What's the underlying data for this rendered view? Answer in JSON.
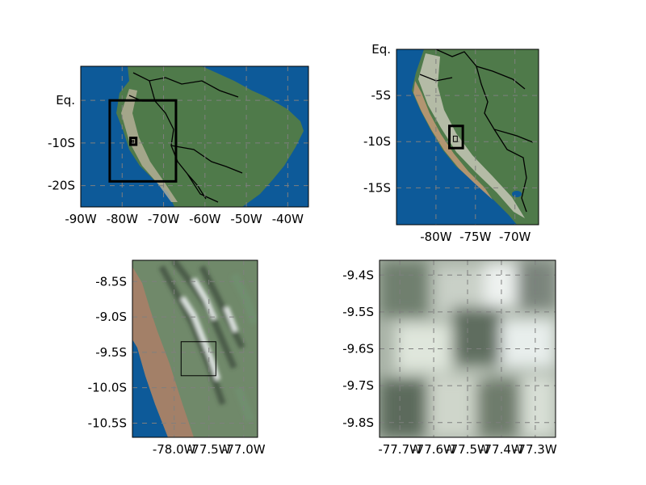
{
  "colors": {
    "ocean": "#0d5a99",
    "land_green": "#4f7a4a",
    "land_brown": "#a78a6a",
    "snow": "#d7dbd6",
    "border": "#000000",
    "grid": "#7f7f7f"
  },
  "panels": [
    {
      "id": "south-america",
      "xlim": [
        -90,
        -35
      ],
      "ylim": [
        -25,
        8
      ],
      "xticks": [
        {
          "v": -90,
          "label": "-90W"
        },
        {
          "v": -80,
          "label": "-80W"
        },
        {
          "v": -70,
          "label": "-70W"
        },
        {
          "v": -60,
          "label": "-60W"
        },
        {
          "v": -50,
          "label": "-50W"
        },
        {
          "v": -40,
          "label": "-40W"
        }
      ],
      "yticks": [
        {
          "v": 0,
          "label": "Eq."
        },
        {
          "v": -10,
          "label": "-10S"
        },
        {
          "v": -20,
          "label": "-20S"
        }
      ],
      "insets": [
        {
          "lon": [
            -83,
            -67
          ],
          "lat": [
            -19,
            0
          ],
          "width": 3
        },
        {
          "lon": [
            -78,
            -76.6
          ],
          "lat": [
            -10.4,
            -8.8
          ],
          "width": 3
        },
        {
          "lon": [
            -77.6,
            -77.2
          ],
          "lat": [
            -9.8,
            -9.4
          ],
          "width": 1
        }
      ]
    },
    {
      "id": "peru",
      "xlim": [
        -85,
        -67
      ],
      "ylim": [
        -19,
        0
      ],
      "xticks": [
        {
          "v": -80,
          "label": "-80W"
        },
        {
          "v": -75,
          "label": "-75W"
        },
        {
          "v": -70,
          "label": "-70W"
        }
      ],
      "yticks": [
        {
          "v": 0,
          "label": "Eq."
        },
        {
          "v": -5,
          "label": "-5S"
        },
        {
          "v": -10,
          "label": "-10S"
        },
        {
          "v": -15,
          "label": "-15S"
        }
      ],
      "insets": [
        {
          "lon": [
            -78.3,
            -76.6
          ],
          "lat": [
            -10.7,
            -8.3
          ],
          "width": 3
        },
        {
          "lon": [
            -77.8,
            -77.3
          ],
          "lat": [
            -10,
            -9.4
          ],
          "width": 1
        }
      ]
    },
    {
      "id": "ancash",
      "xlim": [
        -78.6,
        -76.8
      ],
      "ylim": [
        -10.7,
        -8.2
      ],
      "xticks": [
        {
          "v": -78,
          "label": "-78.0W"
        },
        {
          "v": -77.5,
          "label": "-77.5W"
        },
        {
          "v": -77,
          "label": "-77.0W"
        }
      ],
      "yticks": [
        {
          "v": -8.5,
          "label": "-8.5S"
        },
        {
          "v": -9,
          "label": "-9.0S"
        },
        {
          "v": -9.5,
          "label": "-9.5S"
        },
        {
          "v": -10,
          "label": "-10.0S"
        },
        {
          "v": -10.5,
          "label": "-10.5S"
        }
      ],
      "insets": [
        {
          "lon": [
            -77.9,
            -77.4
          ],
          "lat": [
            -9.83,
            -9.35
          ],
          "width": 1
        }
      ]
    },
    {
      "id": "detail",
      "xlim": [
        -77.76,
        -77.24
      ],
      "ylim": [
        -9.84,
        -9.36
      ],
      "xticks": [
        {
          "v": -77.7,
          "label": "-77.7W"
        },
        {
          "v": -77.6,
          "label": "-77.6W"
        },
        {
          "v": -77.5,
          "label": "-77.5W"
        },
        {
          "v": -77.4,
          "label": "-77.4W"
        },
        {
          "v": -77.3,
          "label": "-77.3W"
        }
      ],
      "yticks": [
        {
          "v": -9.4,
          "label": "-9.4S"
        },
        {
          "v": -9.5,
          "label": "-9.5S"
        },
        {
          "v": -9.6,
          "label": "-9.6S"
        },
        {
          "v": -9.7,
          "label": "-9.7S"
        },
        {
          "v": -9.8,
          "label": "-9.8S"
        }
      ],
      "insets": []
    }
  ]
}
